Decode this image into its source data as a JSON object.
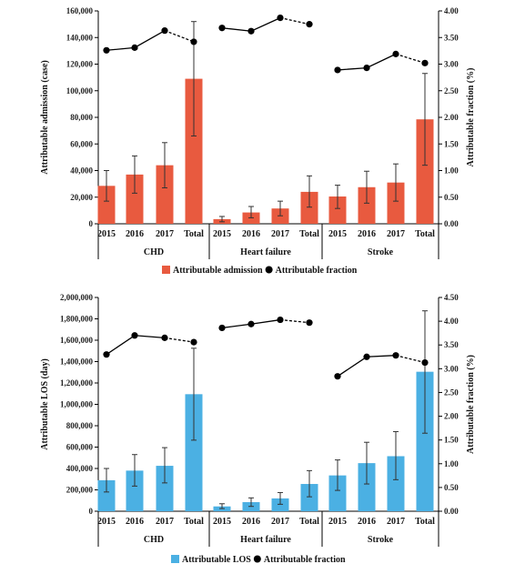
{
  "chart_data": [
    {
      "type": "bar",
      "groups": [
        "CHD",
        "Heart failure",
        "Stroke"
      ],
      "categories": [
        "2015",
        "2016",
        "2017",
        "Total"
      ],
      "bar_color": "#e85a3f",
      "ylabel": "Attributable admission (case)",
      "y2label": "Attributable fraction (%)",
      "ylim": [
        0,
        160000
      ],
      "yticks": [
        "0",
        "20,000",
        "40,000",
        "60,000",
        "80,000",
        "100,000",
        "120,000",
        "140,000",
        "160,000"
      ],
      "y2lim": [
        0,
        4.0
      ],
      "y2ticks": [
        "0.00",
        "0.50",
        "1.00",
        "1.50",
        "2.00",
        "2.50",
        "3.00",
        "3.50",
        "4.00"
      ],
      "series": [
        {
          "name": "Attributable admission",
          "kind": "bar",
          "values": [
            [
              28500,
              37000,
              44000,
              109000
            ],
            [
              3500,
              8500,
              11500,
              24000
            ],
            [
              20500,
              27500,
              31000,
              78500
            ]
          ],
          "err_low": [
            [
              17000,
              23000,
              27000,
              66000
            ],
            [
              1500,
              4500,
              6000,
              12500
            ],
            [
              11500,
              15500,
              17000,
              44000
            ]
          ],
          "err_high": [
            [
              40000,
              51000,
              61000,
              152000
            ],
            [
              5500,
              13000,
              17000,
              36000
            ],
            [
              29000,
              39500,
              45000,
              113000
            ]
          ]
        },
        {
          "name": "Attributable fraction",
          "kind": "line",
          "values": [
            [
              3.26,
              3.31,
              3.63,
              3.42
            ],
            [
              3.68,
              3.62,
              3.87,
              3.75
            ],
            [
              2.89,
              2.93,
              3.19,
              3.02
            ]
          ]
        }
      ],
      "legend": [
        "Attributable admission",
        "Attributable fraction"
      ],
      "legend_position": "bottom"
    },
    {
      "type": "bar",
      "groups": [
        "CHD",
        "Heart failure",
        "Stroke"
      ],
      "categories": [
        "2015",
        "2016",
        "2017",
        "Total"
      ],
      "bar_color": "#4bb0e3",
      "ylabel": "Attributable LOS (day)",
      "y2label": "Attributable fraction (%)",
      "ylim": [
        0,
        2000000
      ],
      "yticks": [
        "0",
        "200,000",
        "400,000",
        "600,000",
        "800,000",
        "1,000,000",
        "1,200,000",
        "1,400,000",
        "1,600,000",
        "1,800,000",
        "2,000,000"
      ],
      "y2lim": [
        0,
        4.5
      ],
      "y2ticks": [
        "0.00",
        "0.50",
        "1.00",
        "1.50",
        "2.00",
        "2.50",
        "3.00",
        "3.50",
        "4.00",
        "4.50"
      ],
      "series": [
        {
          "name": "Attributable LOS",
          "kind": "bar",
          "values": [
            [
              290000,
              380000,
              425000,
              1095000
            ],
            [
              45000,
              85000,
              120000,
              255000
            ],
            [
              335000,
              450000,
              515000,
              1305000
            ]
          ],
          "err_low": [
            [
              180000,
              235000,
              265000,
              665000
            ],
            [
              25000,
              45000,
              65000,
              135000
            ],
            [
              195000,
              255000,
              295000,
              730000
            ]
          ],
          "err_high": [
            [
              400000,
              530000,
              595000,
              1525000
            ],
            [
              70000,
              125000,
              175000,
              380000
            ],
            [
              480000,
              645000,
              745000,
              1875000
            ]
          ]
        },
        {
          "name": "Attributable fraction",
          "kind": "line",
          "values": [
            [
              3.3,
              3.7,
              3.65,
              3.56
            ],
            [
              3.86,
              3.94,
              4.03,
              3.97
            ],
            [
              2.84,
              3.25,
              3.28,
              3.13
            ]
          ]
        }
      ],
      "legend": [
        "Attributable LOS",
        "Attributable fraction"
      ],
      "legend_position": "bottom"
    }
  ]
}
